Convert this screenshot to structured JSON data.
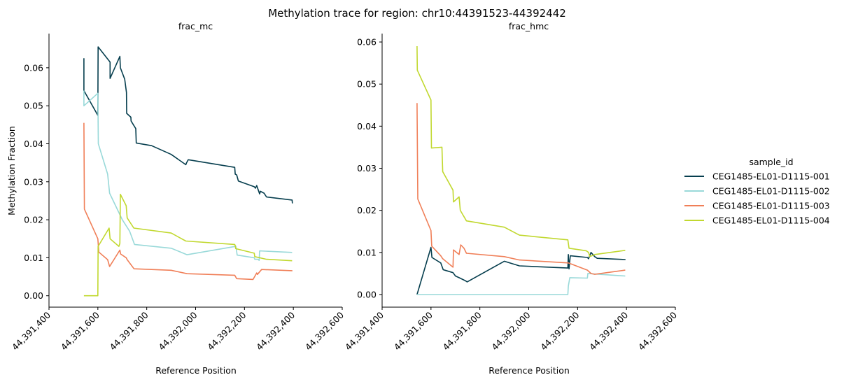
{
  "chart_data": {
    "type": "line",
    "title": "Methylation trace for region: chr10:44391523-44392442",
    "legend": {
      "title": "sample_id",
      "placement": "right",
      "entries": [
        {
          "name": "CEG1485-EL01-D1115-001",
          "color": "#063e4e"
        },
        {
          "name": "CEG1485-EL01-D1115-002",
          "color": "#99d9d9"
        },
        {
          "name": "CEG1485-EL01-D1115-003",
          "color": "#f07f58"
        },
        {
          "name": "CEG1485-EL01-D1115-004",
          "color": "#c1d82f"
        }
      ]
    },
    "xlabel": "Reference Position",
    "ylabel": "Methylation Fraction",
    "grid": false,
    "panels": [
      {
        "subtitle": "frac_mc",
        "xlim": [
          44391400,
          44392600
        ],
        "ylim": [
          -0.003,
          0.069
        ],
        "xticks": [
          44391400,
          44391600,
          44391800,
          44392000,
          44392200,
          44392400,
          44392600
        ],
        "xtick_labels": [
          "44,391,400",
          "44,391,600",
          "44,391,800",
          "44,392,000",
          "44,392,200",
          "44,392,400",
          "44,392,600"
        ],
        "yticks": [
          0,
          0.01,
          0.02,
          0.03,
          0.04,
          0.05,
          0.06
        ],
        "ytick_labels": [
          "0.00",
          "0.01",
          "0.02",
          "0.03",
          "0.04",
          "0.05",
          "0.06"
        ],
        "series": [
          {
            "name": "CEG1485-EL01-D1115-001",
            "x": [
              44391543,
              44391543,
              44391600,
              44391601,
              44391650,
              44391650,
              44391690,
              44391692,
              44391710,
              44391717,
              44391718,
              44391735,
              44391736,
              44391755,
              44391757,
              44391820,
              44391900,
              44391960,
              44391963,
              44391970,
              44392160,
              44392162,
              44392168,
              44392175,
              44392240,
              44392245,
              44392250,
              44392262,
              44392265,
              44392280,
              44392290,
              44392395,
              44392396
            ],
            "y": [
              0.0625,
              0.054,
              0.0475,
              0.0655,
              0.0615,
              0.0572,
              0.063,
              0.06,
              0.057,
              0.0535,
              0.048,
              0.047,
              0.046,
              0.044,
              0.0402,
              0.0395,
              0.0372,
              0.0345,
              0.035,
              0.0358,
              0.0338,
              0.032,
              0.0318,
              0.0302,
              0.0287,
              0.0283,
              0.029,
              0.0268,
              0.0275,
              0.027,
              0.026,
              0.0252,
              0.0243
            ]
          },
          {
            "name": "CEG1485-EL01-D1115-002",
            "x": [
              44391543,
              44391543,
              44391600,
              44391602,
              44391640,
              44391648,
              44391700,
              44391730,
              44391750,
              44391900,
              44391965,
              44392165,
              44392170,
              44392240,
              44392242,
              44392255,
              44392260,
              44392262,
              44392395
            ],
            "y": [
              0.054,
              0.05,
              0.0533,
              0.04,
              0.032,
              0.027,
              0.02,
              0.017,
              0.0135,
              0.0125,
              0.0108,
              0.013,
              0.0107,
              0.01,
              0.0096,
              0.0096,
              0.0093,
              0.0118,
              0.0114
            ]
          },
          {
            "name": "CEG1485-EL01-D1115-003",
            "x": [
              44391543,
              44391545,
              44391600,
              44391604,
              44391640,
              44391648,
              44391690,
              44391693,
              44391716,
              44391720,
              44391748,
              44391900,
              44391965,
              44392160,
              44392168,
              44392235,
              44392250,
              44392253,
              44392270,
              44392395,
              44392396
            ],
            "y": [
              0.0455,
              0.0228,
              0.015,
              0.0115,
              0.0095,
              0.0077,
              0.012,
              0.011,
              0.01,
              0.0095,
              0.0071,
              0.0067,
              0.0058,
              0.0054,
              0.0045,
              0.0043,
              0.006,
              0.0056,
              0.0069,
              0.0066,
              0.0066
            ]
          },
          {
            "name": "CEG1485-EL01-D1115-004",
            "x": [
              44391543,
              44391600,
              44391601,
              44391646,
              44391650,
              44391686,
              44391690,
              44391692,
              44391716,
              44391720,
              44391747,
              44391900,
              44391960,
              44392160,
              44392162,
              44392164,
              44392240,
              44392242,
              44392290,
              44392395
            ],
            "y": [
              0.0,
              0.0,
              0.013,
              0.0178,
              0.015,
              0.013,
              0.0138,
              0.0267,
              0.0237,
              0.0205,
              0.0178,
              0.0165,
              0.0144,
              0.0135,
              0.0132,
              0.0124,
              0.0112,
              0.0103,
              0.0096,
              0.0092
            ]
          }
        ]
      },
      {
        "subtitle": "frac_hmc",
        "xlim": [
          44391400,
          44392600
        ],
        "ylim": [
          -0.003,
          0.062
        ],
        "xticks": [
          44391400,
          44391600,
          44391800,
          44392000,
          44392200,
          44392400,
          44392600
        ],
        "xtick_labels": [
          "44,391,400",
          "44,391,600",
          "44,391,800",
          "44,392,000",
          "44,392,200",
          "44,392,400",
          "44,392,600"
        ],
        "yticks": [
          0,
          0.01,
          0.02,
          0.03,
          0.04,
          0.05,
          0.06
        ],
        "ytick_labels": [
          "0.00",
          "0.01",
          "0.02",
          "0.03",
          "0.04",
          "0.05",
          "0.06"
        ],
        "series": [
          {
            "name": "CEG1485-EL01-D1115-001",
            "x": [
              44391543,
              44391600,
              44391604,
              44391640,
              44391650,
              44391690,
              44391700,
              44391715,
              44391740,
              44391748,
              44391900,
              44391962,
              44392160,
              44392162,
              44392165,
              44392170,
              44392240,
              44392245,
              44392255,
              44392270,
              44392280,
              44392395,
              44392396
            ],
            "y": [
              0.0,
              0.0112,
              0.0088,
              0.0075,
              0.0059,
              0.0052,
              0.0044,
              0.004,
              0.0033,
              0.003,
              0.0079,
              0.0068,
              0.0063,
              0.0095,
              0.0061,
              0.0092,
              0.0088,
              0.0085,
              0.01,
              0.009,
              0.0086,
              0.0083,
              0.0083
            ]
          },
          {
            "name": "CEG1485-EL01-D1115-002",
            "x": [
              44391543,
              44392160,
              44392162,
              44392168,
              44392240,
              44392242,
              44392395
            ],
            "y": [
              0.0,
              0.0,
              0.002,
              0.004,
              0.0039,
              0.005,
              0.0044
            ]
          },
          {
            "name": "CEG1485-EL01-D1115-003",
            "x": [
              44391543,
              44391546,
              44391600,
              44391603,
              44391640,
              44391648,
              44391690,
              44391692,
              44391715,
              44391722,
              44391735,
              44391745,
              44391900,
              44391962,
              44392162,
              44392240,
              44392255,
              44392270,
              44392395
            ],
            "y": [
              0.0455,
              0.0227,
              0.0152,
              0.0115,
              0.0092,
              0.0085,
              0.0065,
              0.0106,
              0.0095,
              0.0118,
              0.011,
              0.0098,
              0.009,
              0.0082,
              0.0075,
              0.0058,
              0.005,
              0.0048,
              0.0058
            ]
          },
          {
            "name": "CEG1485-EL01-D1115-004",
            "x": [
              44391543,
              44391544,
              44391600,
              44391602,
              44391645,
              44391648,
              44391690,
              44391692,
              44391715,
              44391720,
              44391745,
              44391900,
              44391962,
              44392160,
              44392165,
              44392235,
              44392245,
              44392250,
              44392270,
              44392395
            ],
            "y": [
              0.059,
              0.0533,
              0.0462,
              0.0348,
              0.035,
              0.0292,
              0.0248,
              0.022,
              0.0232,
              0.02,
              0.0175,
              0.016,
              0.0141,
              0.013,
              0.011,
              0.0104,
              0.01,
              0.009,
              0.0095,
              0.0105
            ]
          }
        ]
      }
    ]
  }
}
